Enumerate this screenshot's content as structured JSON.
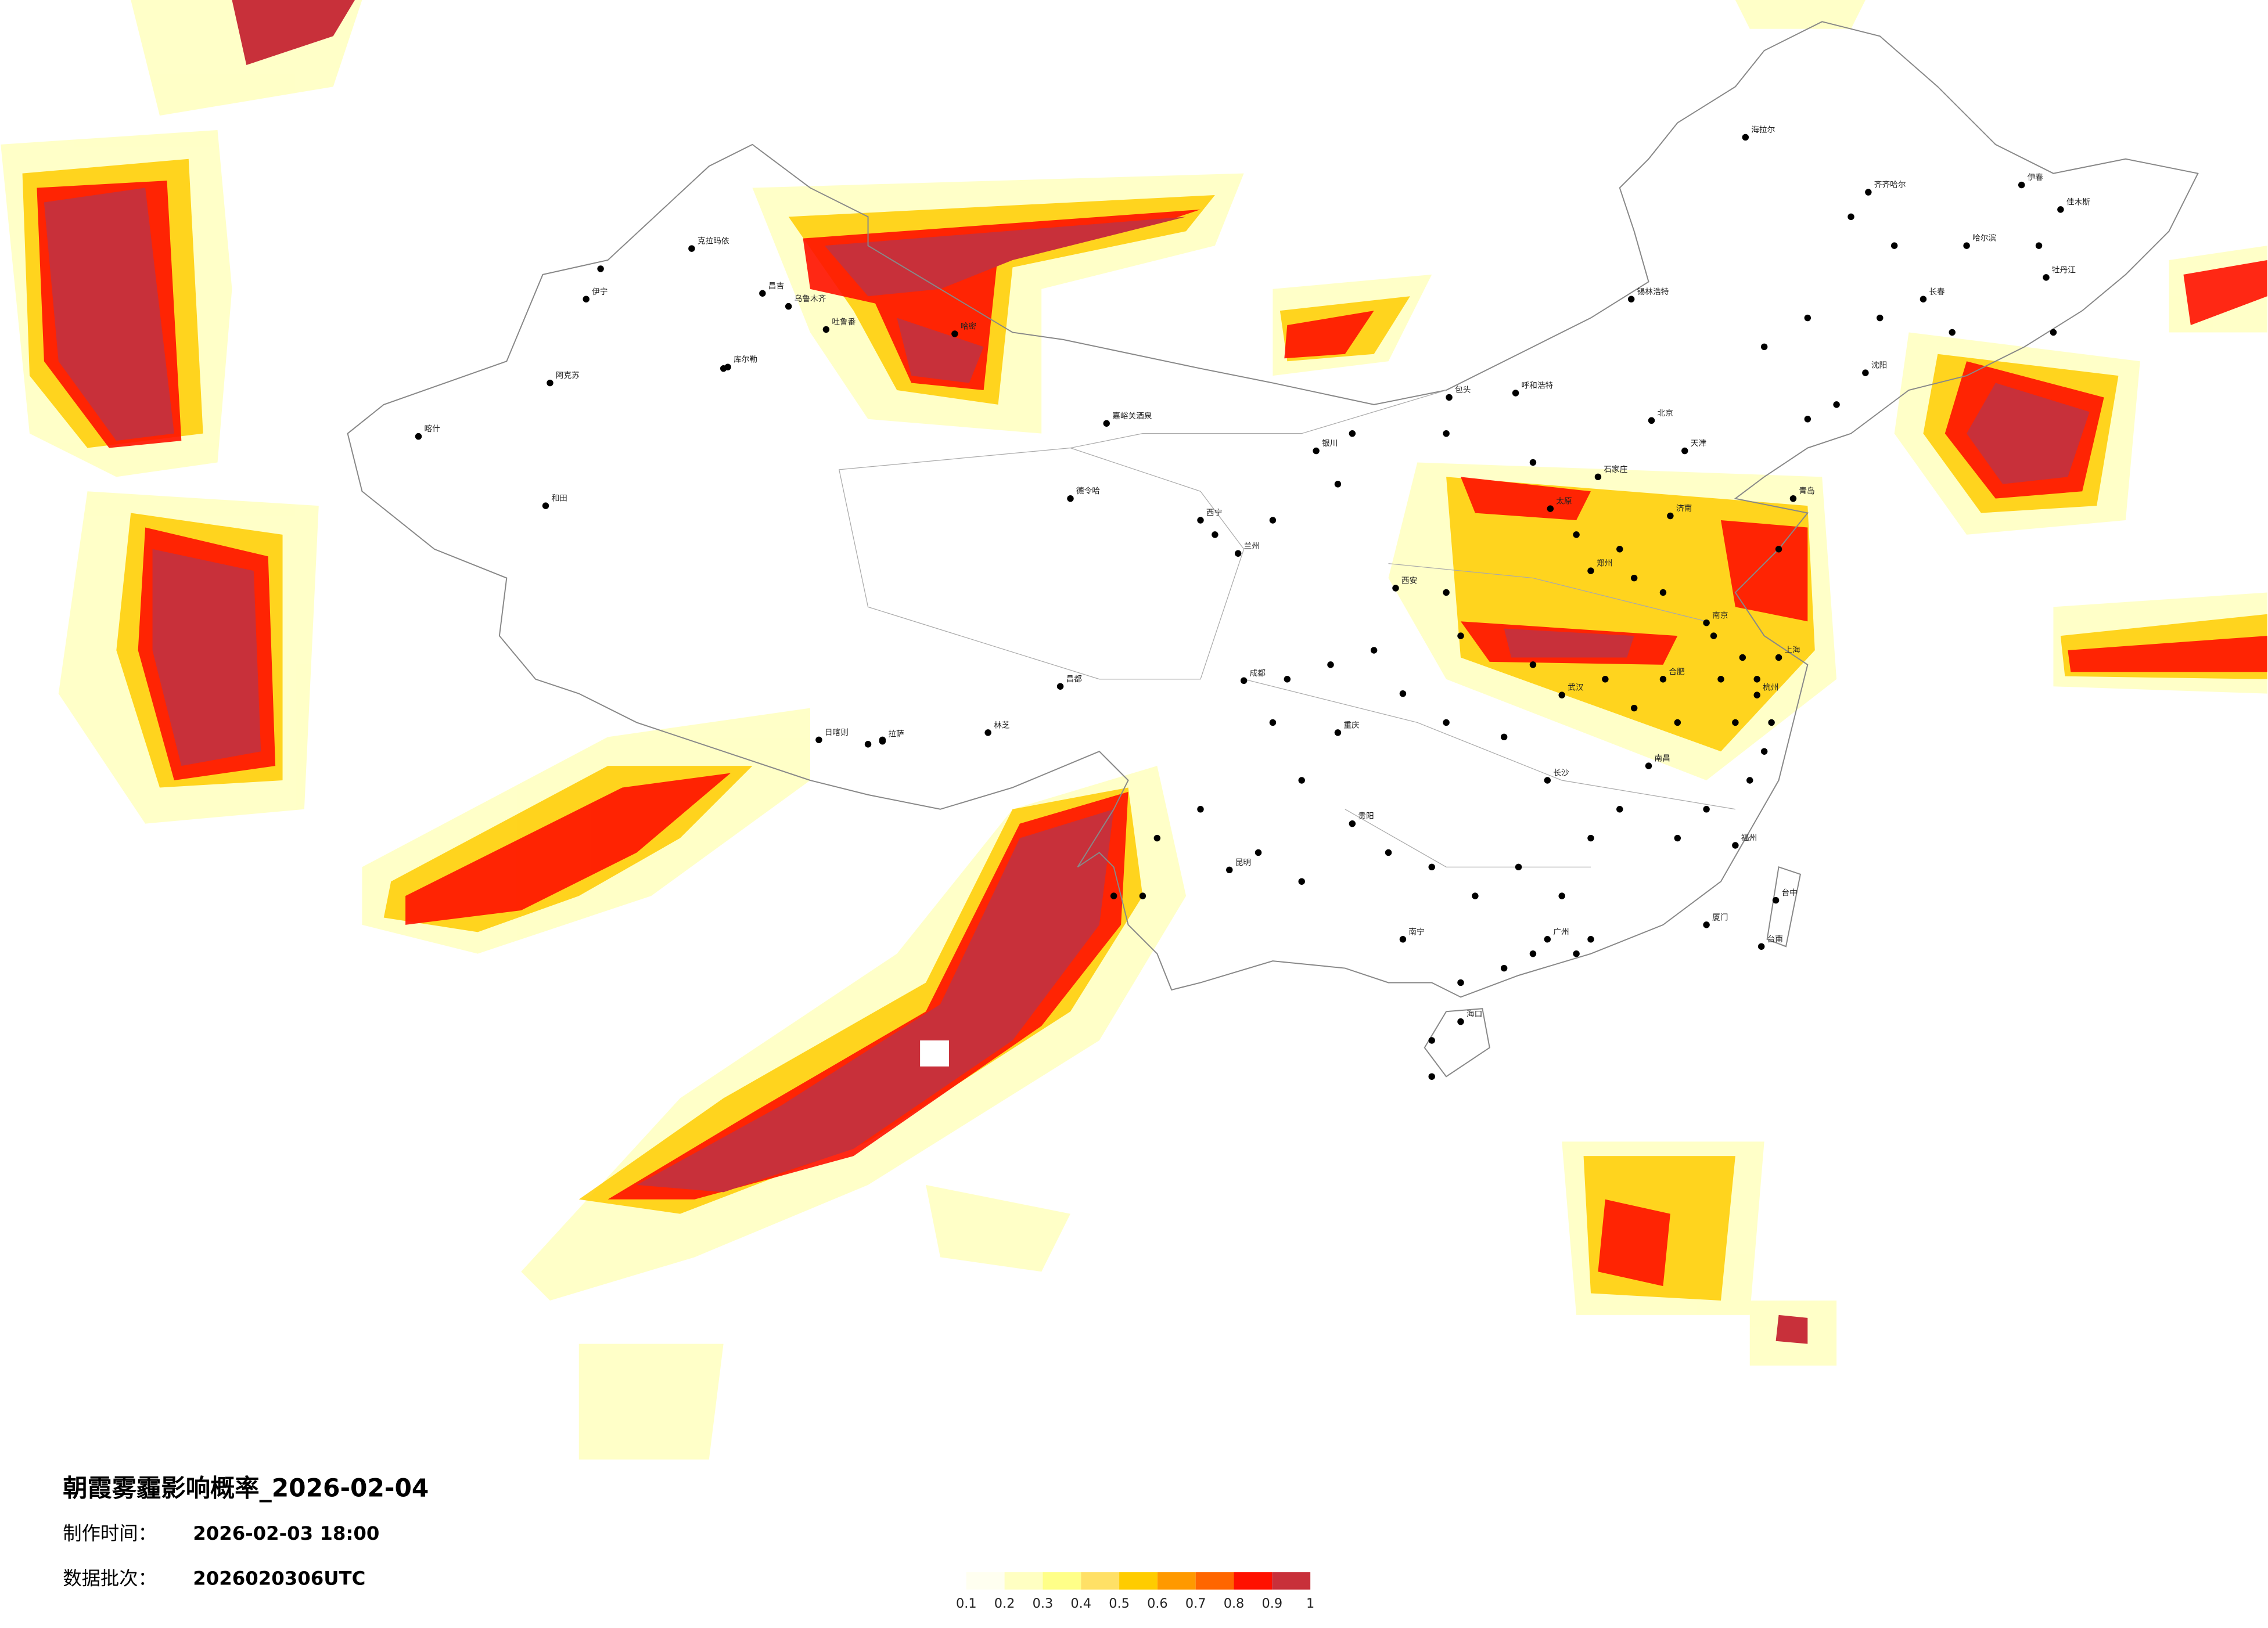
{
  "title": "朝霞雾霾影响概率_2026-02-04",
  "made_time": {
    "label": "制作时间：",
    "value": "2026-02-03 18:00"
  },
  "batch": {
    "label": "数据批次：",
    "value": "2026020306UTC"
  },
  "legend": {
    "colors": [
      "#fffff0",
      "#ffffc2",
      "#ffff88",
      "#ffe066",
      "#ffcc00",
      "#ff9900",
      "#ff6600",
      "#ff1100",
      "#c8303a"
    ],
    "ticks": [
      0.1,
      0.2,
      0.3,
      0.4,
      0.5,
      0.6,
      0.7,
      0.8,
      0.9,
      1
    ]
  },
  "cities": [
    "克拉玛依",
    "伊宁",
    "昌吉",
    "乌鲁木齐",
    "吐鲁番",
    "哈密",
    "库尔勒",
    "阿克苏",
    "喀什",
    "和田",
    "德令哈",
    "嘉峪关酒泉",
    "拉萨",
    "日喀则",
    "林芝",
    "昌都",
    "西宁",
    "兰州",
    "银川",
    "呼和浩特",
    "包头",
    "北京",
    "天津",
    "石家庄",
    "太原",
    "济南",
    "郑州",
    "西安",
    "成都",
    "重庆",
    "武汉",
    "南京",
    "上海",
    "杭州",
    "长沙",
    "南昌",
    "福州",
    "贵阳",
    "昆明",
    "南宁",
    "广州",
    "海口",
    "台中",
    "台南",
    "哈尔滨",
    "长春",
    "沈阳",
    "海拉尔",
    "齐齐哈尔",
    "锡林浩特",
    "伊春",
    "佳木斯",
    "牡丹江",
    "青岛",
    "合肥",
    "厦门"
  ]
}
